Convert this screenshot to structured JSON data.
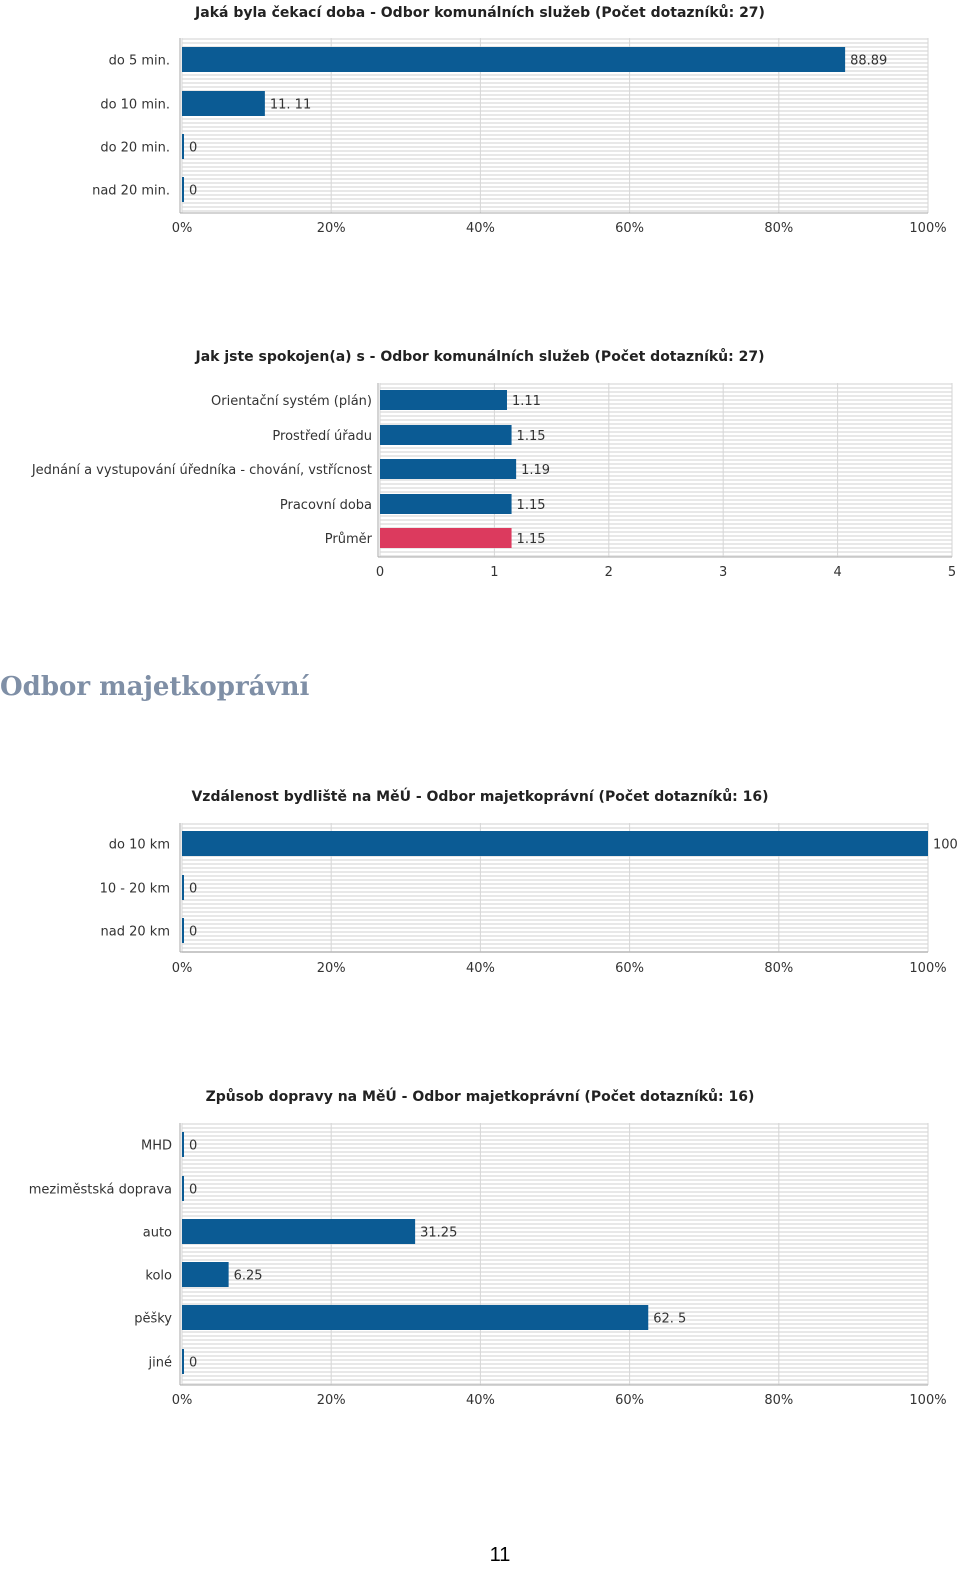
{
  "section_heading": "Odbor majetkoprávní",
  "page_number": "11",
  "colors": {
    "bar": "#0b5b94",
    "average_bar": "#dc3a5e",
    "grid": "#d6d6d6",
    "stripe": "#e8e8e8"
  },
  "chart_data": [
    {
      "type": "bar",
      "orientation": "horizontal",
      "title": "Jaká byla čekací doba - Odbor komunálních služeb (Počet dotazníků: 27)",
      "categories": [
        "do 5 min.",
        "do 10 min.",
        "do 20 min.",
        "nad 20 min."
      ],
      "values": [
        88.89,
        11.11,
        0,
        0
      ],
      "value_labels": [
        "88.89",
        "11. 11",
        "0",
        "0"
      ],
      "xlim": [
        0,
        100
      ],
      "ticks": [
        "0%",
        "20%",
        "40%",
        "60%",
        "80%",
        "100%"
      ],
      "grid": true
    },
    {
      "type": "bar",
      "orientation": "horizontal",
      "title": "Jak jste spokojen(a) s - Odbor komunálních služeb (Počet dotazníků: 27)",
      "categories": [
        "Orientační systém (plán)",
        "Prostředí úřadu",
        "Jednání a vystupování úředníka - chování, vstřícnost",
        "Pracovní doba",
        "Průměr"
      ],
      "values": [
        1.11,
        1.15,
        1.19,
        1.15,
        1.15
      ],
      "value_labels": [
        "1.11",
        "1.15",
        "1.19",
        "1.15",
        "1.15"
      ],
      "highlight": [
        false,
        false,
        false,
        false,
        true
      ],
      "xlim": [
        0,
        5
      ],
      "ticks": [
        "0",
        "1",
        "2",
        "3",
        "4",
        "5"
      ],
      "grid": true
    },
    {
      "type": "bar",
      "orientation": "horizontal",
      "title": "Vzdálenost bydliště na MěÚ - Odbor majetkoprávní (Počet dotazníků: 16)",
      "categories": [
        "do 10 km",
        "10 - 20 km",
        "nad 20 km"
      ],
      "values": [
        100,
        0,
        0
      ],
      "value_labels": [
        "100",
        "0",
        "0"
      ],
      "xlim": [
        0,
        100
      ],
      "ticks": [
        "0%",
        "20%",
        "40%",
        "60%",
        "80%",
        "100%"
      ],
      "grid": true
    },
    {
      "type": "bar",
      "orientation": "horizontal",
      "title": "Způsob dopravy na MěÚ - Odbor majetkoprávní (Počet dotazníků: 16)",
      "categories": [
        "MHD",
        "meziměstská doprava",
        "auto",
        "kolo",
        "pěšky",
        "jiné"
      ],
      "values": [
        0,
        0,
        31.25,
        6.25,
        62.5,
        0
      ],
      "value_labels": [
        "0",
        "0",
        "31.25",
        "6.25",
        "62. 5",
        "0"
      ],
      "xlim": [
        0,
        100
      ],
      "ticks": [
        "0%",
        "20%",
        "40%",
        "60%",
        "80%",
        "100%"
      ],
      "grid": true
    }
  ]
}
